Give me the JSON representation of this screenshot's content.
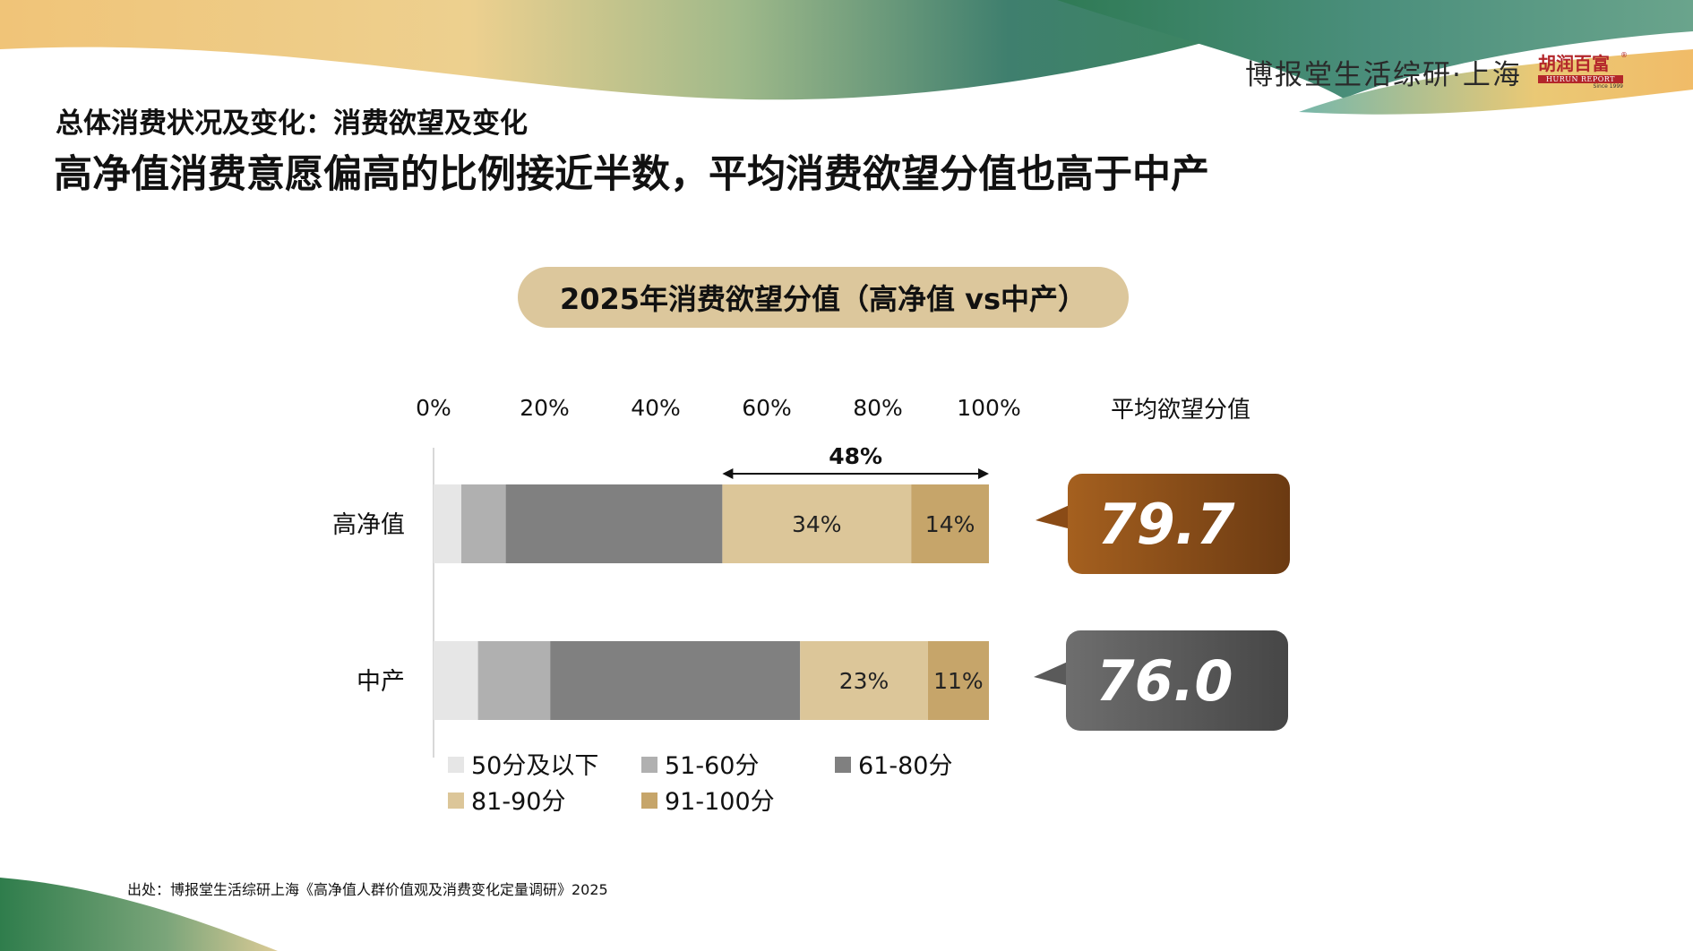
{
  "header": {
    "brand": "博报堂生活综研·上海",
    "logo_text": "胡润百富",
    "logo_strip": "HURUN REPORT",
    "logo_since": "Since 1999",
    "logo_reg": "®"
  },
  "subtitle": "总体消费状况及变化：消费欲望及变化",
  "title": "高净值消费意愿偏高的比例接近半数，平均消费欲望分值也高于中产",
  "chart_title": "2025年消费欲望分值（高净值 vs中产）",
  "footer": "出处：博报堂生活综研上海《高净值人群价值观及消费变化定量调研》2025",
  "colors": {
    "wave_gold": "#e9bc6a",
    "wave_green": "#3f8a5c",
    "wave_teal": "#3f7f8a",
    "pill": "#dcc79c",
    "score_hnw": "#8a4b16",
    "score_mid": "#5a5a5a"
  },
  "chart_data": {
    "type": "bar",
    "orientation": "horizontal",
    "stacked": true,
    "categories": [
      "高净值",
      "中产"
    ],
    "series": [
      {
        "name": "50分及以下",
        "color": "#e6e6e6",
        "values": [
          5,
          8
        ]
      },
      {
        "name": "51-60分",
        "color": "#b0b0b0",
        "values": [
          8,
          13
        ]
      },
      {
        "name": "61-80分",
        "color": "#808080",
        "values": [
          39,
          45
        ]
      },
      {
        "name": "81-90分",
        "color": "#dcc699",
        "values": [
          34,
          23
        ]
      },
      {
        "name": "91-100分",
        "color": "#c6a56a",
        "values": [
          14,
          11
        ]
      }
    ],
    "data_labels": [
      {
        "category": "高净值",
        "series": "81-90分",
        "text": "34%"
      },
      {
        "category": "高净值",
        "series": "91-100分",
        "text": "14%"
      },
      {
        "category": "中产",
        "series": "81-90分",
        "text": "23%"
      },
      {
        "category": "中产",
        "series": "91-100分",
        "text": "11%"
      }
    ],
    "bracket": {
      "category": "高净值",
      "from": 52,
      "to": 100,
      "label": "48%"
    },
    "x_ticks": [
      "0%",
      "20%",
      "40%",
      "60%",
      "80%",
      "100%"
    ],
    "xlim": [
      0,
      100
    ],
    "legend_position": "bottom",
    "avg_score_header": "平均欲望分值",
    "avg_scores": [
      {
        "category": "高净值",
        "value": "79.7",
        "color": "#8a4b16"
      },
      {
        "category": "中产",
        "value": "76.0",
        "color": "#5a5a5a"
      }
    ]
  }
}
